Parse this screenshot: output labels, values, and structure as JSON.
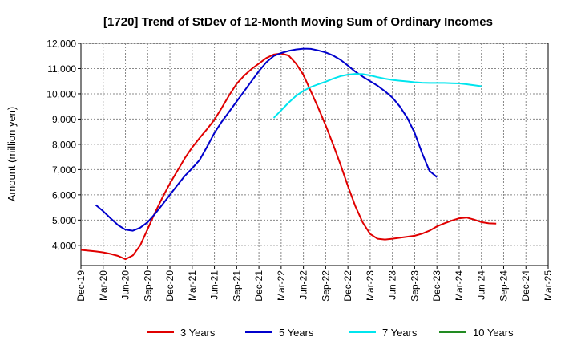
{
  "chart_data": {
    "type": "line",
    "title": "[1720]  Trend of StDev of 12-Month Moving Sum of Ordinary Incomes",
    "xlabel": "",
    "ylabel": "Amount (million yen)",
    "ylim": [
      3200,
      12000
    ],
    "yticks": [
      4000,
      5000,
      6000,
      7000,
      8000,
      9000,
      10000,
      11000,
      12000
    ],
    "ytick_labels": [
      "4,000",
      "5,000",
      "6,000",
      "7,000",
      "8,000",
      "9,000",
      "10,000",
      "11,000",
      "12,000"
    ],
    "x_range_months": [
      0,
      63
    ],
    "xticks": [
      {
        "m": 0,
        "label": "Dec-19"
      },
      {
        "m": 3,
        "label": "Mar-20"
      },
      {
        "m": 6,
        "label": "Jun-20"
      },
      {
        "m": 9,
        "label": "Sep-20"
      },
      {
        "m": 12,
        "label": "Dec-20"
      },
      {
        "m": 15,
        "label": "Mar-21"
      },
      {
        "m": 18,
        "label": "Jun-21"
      },
      {
        "m": 21,
        "label": "Sep-21"
      },
      {
        "m": 24,
        "label": "Dec-21"
      },
      {
        "m": 27,
        "label": "Mar-22"
      },
      {
        "m": 30,
        "label": "Jun-22"
      },
      {
        "m": 33,
        "label": "Sep-22"
      },
      {
        "m": 36,
        "label": "Dec-22"
      },
      {
        "m": 39,
        "label": "Mar-23"
      },
      {
        "m": 42,
        "label": "Jun-23"
      },
      {
        "m": 45,
        "label": "Sep-23"
      },
      {
        "m": 48,
        "label": "Dec-23"
      },
      {
        "m": 51,
        "label": "Mar-24"
      },
      {
        "m": 54,
        "label": "Jun-24"
      },
      {
        "m": 57,
        "label": "Sep-24"
      },
      {
        "m": 60,
        "label": "Dec-24"
      },
      {
        "m": 63,
        "label": "Mar-25"
      }
    ],
    "grid": true,
    "legend_position": "bottom",
    "series": [
      {
        "name": "3 Years",
        "color": "#e00000",
        "points": [
          [
            0,
            3820
          ],
          [
            2,
            3760
          ],
          [
            3,
            3720
          ],
          [
            4,
            3660
          ],
          [
            5,
            3580
          ],
          [
            6,
            3450
          ],
          [
            7,
            3600
          ],
          [
            8,
            4000
          ],
          [
            9,
            4650
          ],
          [
            10,
            5300
          ],
          [
            11,
            5900
          ],
          [
            12,
            6450
          ],
          [
            13,
            6950
          ],
          [
            14,
            7450
          ],
          [
            15,
            7880
          ],
          [
            16,
            8250
          ],
          [
            17,
            8600
          ],
          [
            18,
            8980
          ],
          [
            19,
            9450
          ],
          [
            20,
            9950
          ],
          [
            21,
            10400
          ],
          [
            22,
            10720
          ],
          [
            23,
            10980
          ],
          [
            24,
            11200
          ],
          [
            25,
            11420
          ],
          [
            26,
            11560
          ],
          [
            27,
            11600
          ],
          [
            28,
            11520
          ],
          [
            29,
            11200
          ],
          [
            30,
            10750
          ],
          [
            31,
            10100
          ],
          [
            32,
            9450
          ],
          [
            33,
            8750
          ],
          [
            34,
            8000
          ],
          [
            35,
            7200
          ],
          [
            36,
            6350
          ],
          [
            37,
            5550
          ],
          [
            38,
            4900
          ],
          [
            39,
            4450
          ],
          [
            40,
            4260
          ],
          [
            41,
            4230
          ],
          [
            42,
            4260
          ],
          [
            43,
            4300
          ],
          [
            44,
            4340
          ],
          [
            45,
            4380
          ],
          [
            46,
            4460
          ],
          [
            47,
            4580
          ],
          [
            48,
            4750
          ],
          [
            49,
            4870
          ],
          [
            50,
            4980
          ],
          [
            51,
            5070
          ],
          [
            52,
            5100
          ],
          [
            53,
            5020
          ],
          [
            54,
            4920
          ],
          [
            55,
            4870
          ],
          [
            56,
            4860
          ]
        ]
      },
      {
        "name": "5 Years",
        "color": "#0000cc",
        "points": [
          [
            2,
            5600
          ],
          [
            3,
            5350
          ],
          [
            4,
            5070
          ],
          [
            5,
            4800
          ],
          [
            6,
            4620
          ],
          [
            7,
            4580
          ],
          [
            8,
            4700
          ],
          [
            9,
            4920
          ],
          [
            10,
            5250
          ],
          [
            11,
            5620
          ],
          [
            12,
            6000
          ],
          [
            13,
            6380
          ],
          [
            14,
            6750
          ],
          [
            15,
            7050
          ],
          [
            16,
            7380
          ],
          [
            17,
            7900
          ],
          [
            18,
            8450
          ],
          [
            19,
            8900
          ],
          [
            20,
            9300
          ],
          [
            21,
            9700
          ],
          [
            22,
            10100
          ],
          [
            23,
            10500
          ],
          [
            24,
            10900
          ],
          [
            25,
            11250
          ],
          [
            26,
            11500
          ],
          [
            27,
            11620
          ],
          [
            28,
            11700
          ],
          [
            29,
            11760
          ],
          [
            30,
            11790
          ],
          [
            31,
            11780
          ],
          [
            32,
            11720
          ],
          [
            33,
            11640
          ],
          [
            34,
            11520
          ],
          [
            35,
            11350
          ],
          [
            36,
            11120
          ],
          [
            37,
            10880
          ],
          [
            38,
            10680
          ],
          [
            39,
            10500
          ],
          [
            40,
            10320
          ],
          [
            41,
            10100
          ],
          [
            42,
            9850
          ],
          [
            43,
            9500
          ],
          [
            44,
            9050
          ],
          [
            45,
            8450
          ],
          [
            46,
            7650
          ],
          [
            47,
            6950
          ],
          [
            48,
            6700
          ]
        ]
      },
      {
        "name": "7 Years",
        "color": "#00e5ee",
        "points": [
          [
            26,
            9050
          ],
          [
            27,
            9350
          ],
          [
            28,
            9650
          ],
          [
            29,
            9920
          ],
          [
            30,
            10120
          ],
          [
            31,
            10270
          ],
          [
            32,
            10380
          ],
          [
            33,
            10480
          ],
          [
            34,
            10600
          ],
          [
            35,
            10700
          ],
          [
            36,
            10760
          ],
          [
            37,
            10790
          ],
          [
            38,
            10780
          ],
          [
            39,
            10730
          ],
          [
            40,
            10660
          ],
          [
            41,
            10600
          ],
          [
            42,
            10550
          ],
          [
            43,
            10520
          ],
          [
            44,
            10490
          ],
          [
            45,
            10460
          ],
          [
            46,
            10440
          ],
          [
            47,
            10430
          ],
          [
            48,
            10430
          ],
          [
            49,
            10430
          ],
          [
            50,
            10420
          ],
          [
            51,
            10410
          ],
          [
            52,
            10380
          ],
          [
            53,
            10340
          ],
          [
            54,
            10300
          ]
        ]
      },
      {
        "name": "10 Years",
        "color": "#228b22",
        "points": []
      }
    ]
  }
}
